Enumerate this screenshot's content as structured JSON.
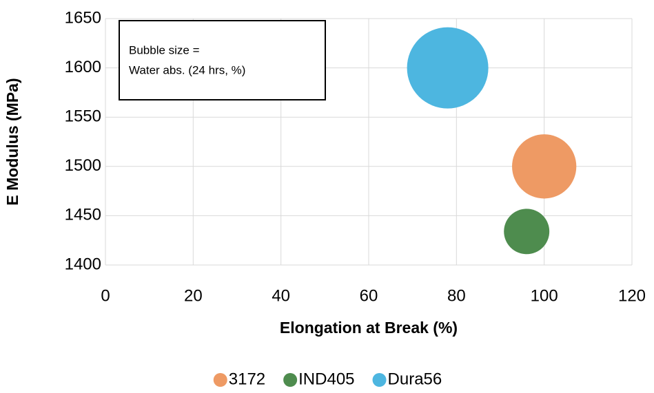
{
  "chart_data": {
    "type": "bubble",
    "xlabel": "Elongation at Break (%)",
    "ylabel": "E Modulus (MPa)",
    "annotation": [
      "Bubble size =",
      "Water abs. (24 hrs, %)"
    ],
    "xlim": [
      0,
      120
    ],
    "xticks": [
      0,
      20,
      40,
      60,
      80,
      100,
      120
    ],
    "ylim": [
      1400,
      1650
    ],
    "yticks": [
      1400,
      1450,
      1500,
      1550,
      1600,
      1650
    ],
    "grid": true,
    "legend": "bottom",
    "series": [
      {
        "name": "3172",
        "color": "#ee9a64",
        "x": [
          100
        ],
        "values": [
          1500
        ],
        "sizes": [
          1.0
        ]
      },
      {
        "name": "IND405",
        "color": "#4e8c4e",
        "x": [
          96
        ],
        "values": [
          1434
        ],
        "sizes": [
          0.5
        ]
      },
      {
        "name": "Dura56",
        "color": "#4db6e0",
        "x": [
          78
        ],
        "values": [
          1600
        ],
        "sizes": [
          1.6
        ]
      }
    ]
  }
}
